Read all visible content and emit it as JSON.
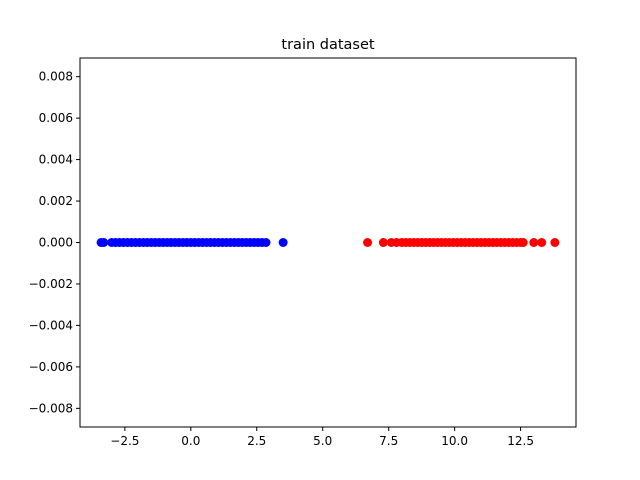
{
  "chart_data": {
    "type": "scatter",
    "title": "train dataset",
    "xlabel": "",
    "ylabel": "",
    "xlim": [
      -4.2,
      14.6
    ],
    "ylim": [
      -0.0089,
      0.0089
    ],
    "xticks": [
      -2.5,
      0.0,
      2.5,
      5.0,
      7.5,
      10.0,
      12.5
    ],
    "xtick_labels": [
      "−2.5",
      "0.0",
      "2.5",
      "5.0",
      "7.5",
      "10.0",
      "12.5"
    ],
    "yticks": [
      0.008,
      0.006,
      0.004,
      0.002,
      0.0,
      -0.002,
      -0.004,
      -0.006,
      -0.008
    ],
    "ytick_labels": [
      "0.008",
      "0.006",
      "0.004",
      "0.002",
      "0.000",
      "−0.002",
      "−0.004",
      "−0.006",
      "−0.008"
    ],
    "grid": false,
    "series": [
      {
        "color": "#0000ff",
        "x": [
          -3.4,
          -3.3,
          -3.0,
          -2.85,
          -2.7,
          -2.55,
          -2.4,
          -2.25,
          -2.1,
          -1.95,
          -1.8,
          -1.65,
          -1.5,
          -1.35,
          -1.2,
          -1.05,
          -0.9,
          -0.75,
          -0.6,
          -0.45,
          -0.3,
          -0.15,
          0.0,
          0.15,
          0.3,
          0.45,
          0.6,
          0.75,
          0.9,
          1.05,
          1.2,
          1.35,
          1.5,
          1.65,
          1.8,
          1.95,
          2.1,
          2.25,
          2.4,
          2.55,
          2.7,
          2.85,
          3.5
        ],
        "y": [
          0,
          0,
          0,
          0,
          0,
          0,
          0,
          0,
          0,
          0,
          0,
          0,
          0,
          0,
          0,
          0,
          0,
          0,
          0,
          0,
          0,
          0,
          0,
          0,
          0,
          0,
          0,
          0,
          0,
          0,
          0,
          0,
          0,
          0,
          0,
          0,
          0,
          0,
          0,
          0,
          0,
          0,
          0
        ]
      },
      {
        "color": "#ff0000",
        "x": [
          6.7,
          7.3,
          7.6,
          7.8,
          8.0,
          8.15,
          8.3,
          8.45,
          8.6,
          8.75,
          8.9,
          9.05,
          9.2,
          9.35,
          9.5,
          9.65,
          9.8,
          9.95,
          10.1,
          10.25,
          10.4,
          10.55,
          10.7,
          10.85,
          11.0,
          11.15,
          11.3,
          11.45,
          11.6,
          11.75,
          11.9,
          12.05,
          12.2,
          12.35,
          12.5,
          12.6,
          13.0,
          13.3,
          13.8
        ],
        "y": [
          0,
          0,
          0,
          0,
          0,
          0,
          0,
          0,
          0,
          0,
          0,
          0,
          0,
          0,
          0,
          0,
          0,
          0,
          0,
          0,
          0,
          0,
          0,
          0,
          0,
          0,
          0,
          0,
          0,
          0,
          0,
          0,
          0,
          0,
          0,
          0,
          0,
          0,
          0
        ]
      }
    ]
  }
}
